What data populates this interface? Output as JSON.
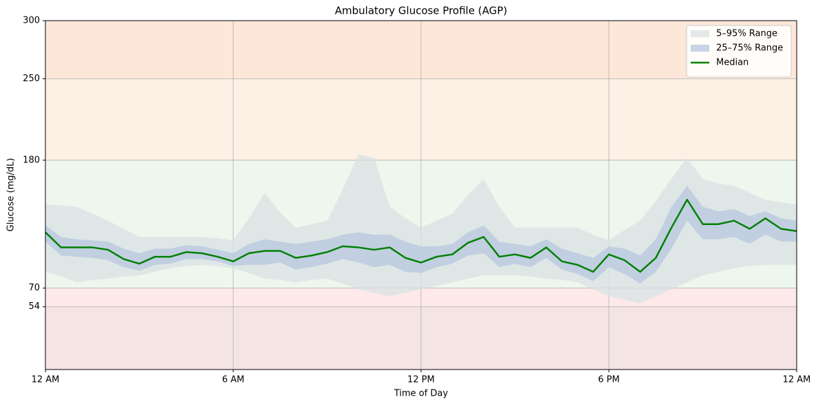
{
  "chart_data": {
    "type": "agp",
    "title": "Ambulatory Glucose Profile (AGP)",
    "x_label": "Time of Day",
    "y_label": "Glucose (mg/dL)",
    "x": [
      0,
      0.5,
      1,
      1.5,
      2,
      2.5,
      3,
      3.5,
      4,
      4.5,
      5,
      5.5,
      6,
      6.5,
      7,
      7.5,
      8,
      8.5,
      9,
      9.5,
      10,
      10.5,
      11,
      11.5,
      12,
      12.5,
      13,
      13.5,
      14,
      14.5,
      15,
      15.5,
      16,
      16.5,
      17,
      17.5,
      18,
      18.5,
      19,
      19.5,
      20,
      20.5,
      21,
      21.5,
      22,
      22.5,
      23,
      23.5,
      24
    ],
    "xlim": [
      0,
      24
    ],
    "xticks": [
      {
        "value": 0,
        "label": "12 AM"
      },
      {
        "value": 6,
        "label": "6 AM"
      },
      {
        "value": 12,
        "label": "12 PM"
      },
      {
        "value": 18,
        "label": "6 PM"
      },
      {
        "value": 24,
        "label": "12 AM"
      }
    ],
    "ylim": [
      0,
      300
    ],
    "yticks": [
      54,
      70,
      180,
      250,
      300
    ],
    "grid": true,
    "zones": [
      {
        "from": 0,
        "to": 54,
        "color": "#f4e4e4"
      },
      {
        "from": 54,
        "to": 70,
        "color": "#fde9e9"
      },
      {
        "from": 70,
        "to": 180,
        "color": "#eef7ee"
      },
      {
        "from": 180,
        "to": 250,
        "color": "#fdf0e4"
      },
      {
        "from": 250,
        "to": 300,
        "color": "#fce7d8"
      }
    ],
    "bands": [
      {
        "name": "5–95% Range",
        "color": "#d9e2e3",
        "opacity": 0.75,
        "lower": [
          84,
          80,
          75,
          77,
          78,
          80,
          81,
          84,
          87,
          89,
          90,
          89,
          87,
          83,
          78,
          77,
          75,
          77,
          78,
          74,
          69,
          66,
          63,
          66,
          69,
          72,
          75,
          78,
          81,
          81,
          81,
          80,
          78,
          77,
          75,
          69,
          63,
          60,
          57,
          63,
          69,
          75,
          81,
          84,
          87,
          89,
          90,
          90,
          90
        ],
        "upper": [
          142,
          141,
          140,
          134,
          128,
          121,
          114,
          114,
          114,
          114,
          114,
          113,
          111,
          130,
          152,
          135,
          122,
          125,
          128,
          155,
          185,
          182,
          140,
          130,
          122,
          128,
          134,
          150,
          164,
          140,
          122,
          122,
          122,
          122,
          122,
          116,
          111,
          120,
          128,
          145,
          164,
          182,
          164,
          160,
          158,
          152,
          146,
          144,
          142
        ]
      },
      {
        "name": "25–75% Range",
        "color": "#b7c7df",
        "opacity": 0.75,
        "lower": [
          110,
          98,
          97,
          96,
          94,
          88,
          85,
          90,
          91,
          95,
          95,
          93,
          89,
          90,
          90,
          92,
          86,
          88,
          91,
          95,
          92,
          88,
          90,
          84,
          83,
          88,
          91,
          98,
          100,
          88,
          91,
          88,
          96,
          86,
          82,
          76,
          88,
          82,
          74,
          84,
          104,
          128,
          112,
          112,
          114,
          108,
          116,
          110,
          110
        ],
        "upper": [
          124,
          114,
          112,
          111,
          110,
          104,
          100,
          104,
          104,
          107,
          106,
          103,
          100,
          108,
          112,
          110,
          108,
          110,
          112,
          116,
          118,
          116,
          116,
          110,
          106,
          106,
          108,
          118,
          124,
          110,
          108,
          106,
          112,
          104,
          100,
          96,
          106,
          104,
          98,
          112,
          140,
          158,
          140,
          136,
          138,
          132,
          136,
          130,
          128
        ]
      }
    ],
    "series": [
      {
        "name": "Median",
        "color": "#008000",
        "values": [
          118,
          105,
          105,
          105,
          103,
          95,
          91,
          97,
          97,
          101,
          100,
          97,
          93,
          100,
          102,
          102,
          96,
          98,
          101,
          106,
          105,
          103,
          105,
          96,
          92,
          97,
          99,
          109,
          114,
          97,
          99,
          96,
          105,
          93,
          90,
          84,
          99,
          94,
          84,
          96,
          122,
          146,
          125,
          125,
          128,
          121,
          130,
          121,
          119
        ]
      }
    ],
    "legend": "upper right"
  }
}
